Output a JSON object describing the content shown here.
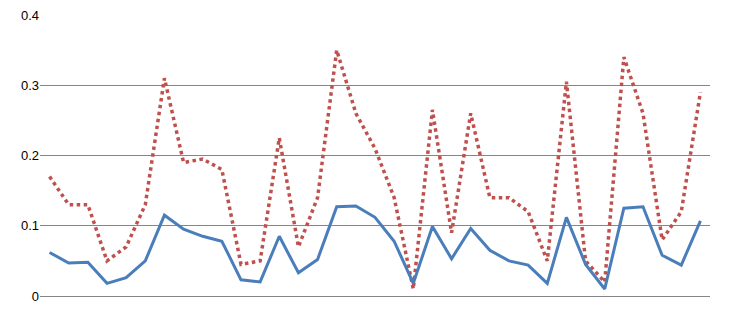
{
  "chart_data": {
    "type": "line",
    "categories": [
      null,
      null,
      null,
      null,
      null,
      null,
      null,
      null,
      null,
      null,
      null,
      null,
      null,
      null,
      null,
      null,
      null,
      null,
      null,
      null,
      null,
      null,
      null,
      null,
      null,
      null,
      null,
      null,
      null,
      null,
      null,
      null,
      null,
      null,
      null
    ],
    "series": [
      {
        "color": "#c0504d",
        "line_style": "dotted",
        "values": [
          0.17,
          0.13,
          0.13,
          0.05,
          0.07,
          0.13,
          0.31,
          0.19,
          0.195,
          0.18,
          0.045,
          0.05,
          0.225,
          0.07,
          0.14,
          0.35,
          0.26,
          0.21,
          0.14,
          0.01,
          0.265,
          0.09,
          0.26,
          0.14,
          0.14,
          0.12,
          0.05,
          0.305,
          0.05,
          0.02,
          0.34,
          0.26,
          0.08,
          0.12,
          0.29
        ]
      },
      {
        "color": "#4a7ebb",
        "line_style": "solid",
        "values": [
          0.062,
          0.047,
          0.048,
          0.018,
          0.026,
          0.05,
          0.115,
          0.095,
          0.085,
          0.078,
          0.023,
          0.02,
          0.085,
          0.033,
          0.052,
          0.127,
          0.128,
          0.112,
          0.078,
          0.018,
          0.099,
          0.053,
          0.096,
          0.065,
          0.05,
          0.044,
          0.018,
          0.112,
          0.045,
          0.01,
          0.125,
          0.127,
          0.058,
          0.044,
          0.107
        ]
      }
    ],
    "ylim": [
      0,
      0.4
    ],
    "yticks": [
      0,
      0.1,
      0.2,
      0.3,
      0.4
    ],
    "grid": true,
    "tick_labels": "y"
  }
}
